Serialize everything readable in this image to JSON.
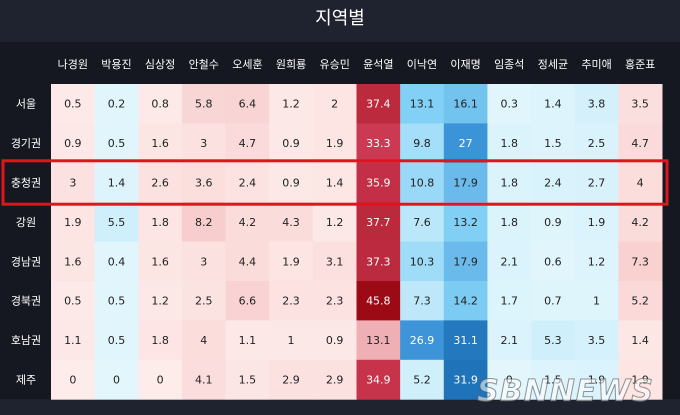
{
  "chart_data": {
    "type": "heatmap",
    "title": "지역별",
    "columns": [
      "나경원",
      "박용진",
      "심상정",
      "안철수",
      "오세훈",
      "원희룡",
      "유승민",
      "윤석열",
      "이낙연",
      "이재명",
      "임종석",
      "정세균",
      "추미애",
      "홍준표"
    ],
    "rows": [
      "서울",
      "경기권",
      "충청권",
      "강원",
      "경남권",
      "경북권",
      "호남권",
      "제주"
    ],
    "values": [
      [
        0.5,
        0.2,
        0.8,
        5.8,
        6.4,
        1.2,
        2,
        37.4,
        13.1,
        16.1,
        0.3,
        1.4,
        3.8,
        3.5
      ],
      [
        0.9,
        0.5,
        1.6,
        3,
        4.7,
        0.9,
        1.9,
        33.3,
        9.8,
        27,
        1.8,
        1.5,
        2.5,
        4.7
      ],
      [
        3,
        1.4,
        2.6,
        3.6,
        2.4,
        0.9,
        1.4,
        35.9,
        10.8,
        17.9,
        1.8,
        2.4,
        2.7,
        4
      ],
      [
        1.9,
        5.5,
        1.8,
        8.2,
        4.2,
        4.3,
        1.2,
        37.7,
        7.6,
        13.2,
        1.8,
        0.9,
        1.9,
        4.2
      ],
      [
        1.6,
        0.4,
        1.6,
        3,
        4.4,
        1.9,
        3.1,
        37.3,
        10.3,
        17.9,
        2.1,
        0.6,
        1.2,
        7.3
      ],
      [
        0.5,
        0.5,
        1.2,
        2.5,
        6.6,
        2.3,
        2.3,
        45.8,
        7.3,
        14.2,
        1.7,
        0.7,
        1,
        5.2
      ],
      [
        1.1,
        0.5,
        1.8,
        4,
        1.1,
        1,
        0.9,
        13.1,
        26.9,
        31.1,
        2.1,
        5.3,
        3.5,
        1.4
      ],
      [
        0,
        0,
        0,
        4.1,
        1.5,
        2.9,
        2.9,
        34.9,
        5.2,
        31.9,
        0,
        1.5,
        1.9,
        1.9
      ]
    ],
    "blue_columns": [
      "박용진",
      "이낙연",
      "이재명",
      "정세균",
      "추미애",
      "임종석"
    ],
    "red_columns": [
      "나경원",
      "심상정",
      "안철수",
      "오세훈",
      "원희룡",
      "유승민",
      "윤석열",
      "홍준표"
    ],
    "highlighted_row": "충청권",
    "highlight_color": "#e0141e",
    "colors": {
      "background": "#1f2330",
      "red_strong": "#9b0a14",
      "blue_strong": "#1e72b8"
    }
  },
  "watermark": "SBNNEWS"
}
